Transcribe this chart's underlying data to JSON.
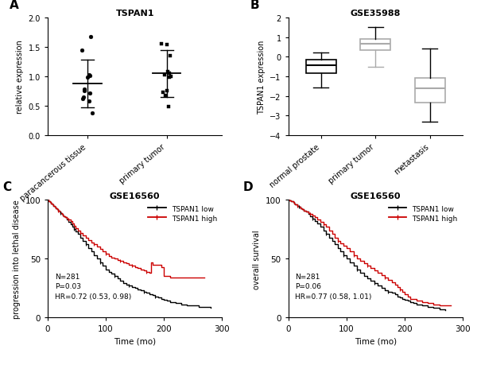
{
  "panel_A": {
    "title": "TSPAN1",
    "ylabel": "relative expression",
    "groups": [
      "paracancerous tissue",
      "primary tumor"
    ],
    "group1_points": [
      1.67,
      1.45,
      1.02,
      1.01,
      0.98,
      0.78,
      0.75,
      0.72,
      0.65,
      0.62,
      0.58,
      0.38
    ],
    "group2_points": [
      1.55,
      1.54,
      1.35,
      1.08,
      1.05,
      1.02,
      1.0,
      0.98,
      0.75,
      0.73,
      0.68,
      0.48
    ],
    "group1_mean": 0.88,
    "group1_sd_upper": 1.29,
    "group1_sd_lower": 0.47,
    "group2_mean": 1.05,
    "group2_sd_upper": 1.45,
    "group2_sd_lower": 0.65,
    "ylim": [
      0.0,
      2.0
    ],
    "yticks": [
      0.0,
      0.5,
      1.0,
      1.5,
      2.0
    ],
    "marker_color": "black",
    "marker1": "o",
    "marker2": "s"
  },
  "panel_B": {
    "title": "GSE35988",
    "ylabel": "TSPAN1 expression",
    "groups": [
      "normal prostate",
      "primary tumor",
      "metastasis"
    ],
    "box_data": {
      "normal prostate": {
        "q1": -0.85,
        "median": -0.45,
        "q3": -0.15,
        "whislo": -1.55,
        "whishi": 0.2
      },
      "primary tumor": {
        "q1": 0.35,
        "median": 0.65,
        "q3": 0.9,
        "whislo": -0.5,
        "whishi": 1.5
      },
      "metastasis": {
        "q1": -2.35,
        "median": -1.6,
        "q3": -1.1,
        "whislo": -3.3,
        "whishi": 0.4
      }
    },
    "colors": [
      "black",
      "#aaaaaa",
      "#aaaaaa"
    ],
    "ylim": [
      -4,
      2
    ],
    "yticks": [
      -4,
      -3,
      -2,
      -1,
      0,
      1,
      2
    ]
  },
  "panel_C": {
    "title": "GSE16560",
    "xlabel": "Time (mo)",
    "ylabel": "progression into lethal disease",
    "annotation": "N=281\nP=0.03\nHR=0.72 (0.53, 0.98)",
    "xlim": [
      0,
      300
    ],
    "ylim": [
      0,
      100
    ],
    "xticks": [
      0,
      100,
      200,
      300
    ],
    "yticks": [
      0,
      50,
      100
    ],
    "legend_labels": [
      "TSPAN1 low",
      "TSPAN1 high"
    ],
    "line_colors": [
      "black",
      "#cc0000"
    ]
  },
  "panel_D": {
    "title": "GSE16560",
    "xlabel": "Time (mo)",
    "ylabel": "overall survival",
    "annotation": "N=281\nP=0.06\nHR=0.77 (0.58, 1.01)",
    "xlim": [
      0,
      300
    ],
    "ylim": [
      0,
      100
    ],
    "xticks": [
      0,
      100,
      200,
      300
    ],
    "yticks": [
      0,
      50,
      100
    ],
    "legend_labels": [
      "TSPAN1 low",
      "TSPAN1 high"
    ],
    "line_colors": [
      "black",
      "#cc0000"
    ]
  }
}
